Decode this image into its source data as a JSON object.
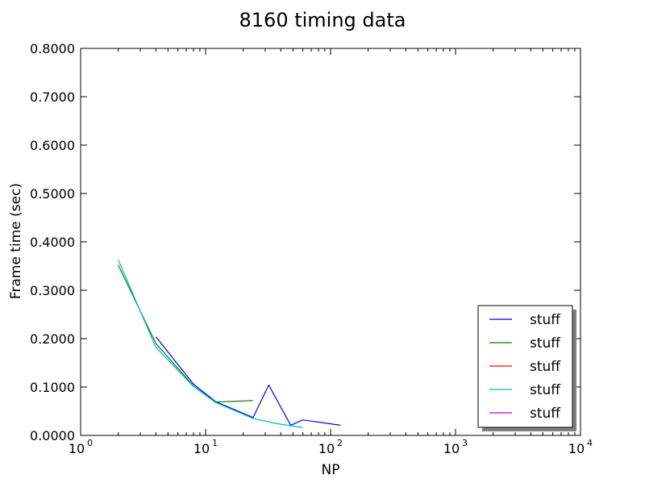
{
  "chart_data": {
    "type": "line",
    "title": "8160 timing data",
    "xlabel": "NP",
    "ylabel": "Frame time (sec)",
    "xscale": "log",
    "xlim": [
      1,
      10000
    ],
    "ylim": [
      0.0,
      0.8
    ],
    "x_ticks": [
      {
        "base": "10",
        "exp": "0"
      },
      {
        "base": "10",
        "exp": "1"
      },
      {
        "base": "10",
        "exp": "2"
      },
      {
        "base": "10",
        "exp": "3"
      },
      {
        "base": "10",
        "exp": "4"
      }
    ],
    "y_ticks": [
      "0.0000",
      "0.1000",
      "0.2000",
      "0.3000",
      "0.4000",
      "0.5000",
      "0.6000",
      "0.7000",
      "0.8000"
    ],
    "grid": false,
    "legend_position": "lower-right",
    "series": [
      {
        "name": "stuff",
        "color": "#0000ff",
        "x": [
          4,
          8,
          12,
          24,
          32,
          48,
          60,
          120
        ],
        "y": [
          0.204,
          0.106,
          0.07,
          0.037,
          0.104,
          0.021,
          0.032,
          0.021
        ]
      },
      {
        "name": "stuff",
        "color": "#008000",
        "x": [
          2,
          4,
          8,
          12,
          24
        ],
        "y": [
          0.352,
          0.19,
          0.102,
          0.069,
          0.072
        ]
      },
      {
        "name": "stuff",
        "color": "#ff0000",
        "x": [],
        "y": []
      },
      {
        "name": "stuff",
        "color": "#00bfbf",
        "x": [
          2,
          4,
          8,
          12,
          24,
          36,
          60
        ],
        "y": [
          0.363,
          0.182,
          0.101,
          0.068,
          0.035,
          0.025,
          0.016
        ]
      },
      {
        "name": "stuff",
        "color": "#bf00bf",
        "x": [],
        "y": []
      }
    ]
  }
}
